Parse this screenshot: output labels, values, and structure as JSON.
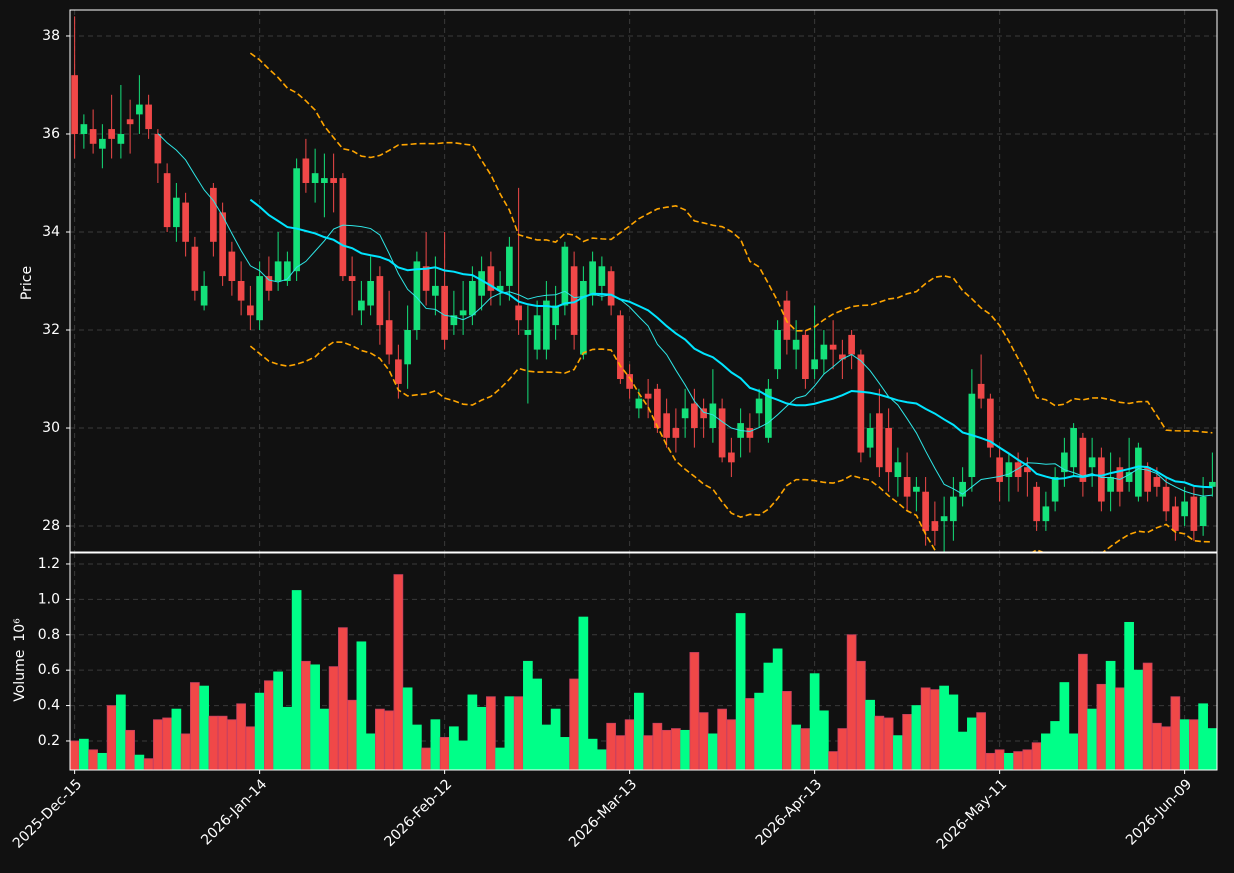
{
  "chart_data": {
    "type": "candlestick",
    "ylabel": "Price",
    "volume_label": "Volume",
    "volume_unit": "10⁶",
    "up_color": "#14e07a",
    "down_color": "#f04848",
    "volume_up_color": "#00ff88",
    "grid": true,
    "xlim": [
      -0.5,
      123.5
    ],
    "ylim": [
      27.47,
      38.53
    ],
    "yticks": [
      28,
      30,
      32,
      34,
      36,
      38
    ],
    "volume_ylim": [
      0.036,
      1.262
    ],
    "volume_yticks": [
      0.2,
      0.4,
      0.6,
      0.8,
      {
        "value": 1,
        "label": "1.0"
      },
      1.2
    ],
    "xticks": [
      0,
      20,
      40,
      60,
      80,
      100,
      120
    ],
    "moving_averages": [
      {
        "window": 10,
        "color": "#2ee6e6",
        "width": 1
      },
      {
        "window": 20,
        "color": "#00e5ff",
        "width": 2
      }
    ],
    "bollinger": {
      "window": 20,
      "num_std": 2,
      "color": "#ffa500"
    },
    "categories": [
      "2025-Dec-15",
      null,
      null,
      null,
      null,
      null,
      null,
      null,
      null,
      null,
      null,
      null,
      null,
      null,
      null,
      null,
      null,
      null,
      null,
      null,
      "2026-Jan-14",
      null,
      null,
      null,
      null,
      null,
      null,
      null,
      null,
      null,
      null,
      null,
      null,
      null,
      null,
      null,
      null,
      null,
      null,
      null,
      "2026-Feb-12",
      null,
      null,
      null,
      null,
      null,
      null,
      null,
      null,
      null,
      null,
      null,
      null,
      null,
      null,
      null,
      null,
      null,
      null,
      null,
      "2026-Mar-13",
      null,
      null,
      null,
      null,
      null,
      null,
      null,
      null,
      null,
      null,
      null,
      null,
      null,
      null,
      null,
      null,
      null,
      null,
      null,
      "2026-Apr-13",
      null,
      null,
      null,
      null,
      null,
      null,
      null,
      null,
      null,
      null,
      null,
      null,
      null,
      null,
      null,
      null,
      null,
      null,
      null,
      "2026-May-11",
      null,
      null,
      null,
      null,
      null,
      null,
      null,
      null,
      null,
      null,
      null,
      null,
      null,
      null,
      null,
      null,
      null,
      null,
      null,
      "2026-Jun-09",
      null,
      null,
      null
    ],
    "open": [
      37.2,
      36.0,
      36.1,
      35.7,
      36.1,
      35.8,
      36.3,
      36.4,
      36.6,
      36.0,
      35.2,
      34.1,
      34.6,
      33.7,
      32.5,
      34.9,
      34.4,
      33.6,
      33.0,
      32.5,
      32.2,
      33.1,
      33.0,
      33.0,
      33.2,
      35.5,
      35.0,
      35.0,
      35.1,
      35.1,
      33.1,
      32.4,
      32.5,
      33.1,
      32.2,
      31.4,
      31.3,
      32.0,
      33.3,
      32.7,
      32.9,
      32.1,
      32.3,
      32.3,
      32.7,
      33.3,
      32.8,
      32.9,
      32.5,
      31.9,
      31.6,
      31.6,
      32.1,
      32.5,
      33.3,
      31.5,
      32.7,
      32.9,
      33.2,
      32.3,
      31.1,
      30.4,
      30.7,
      30.8,
      30.3,
      30.0,
      30.2,
      30.5,
      30.4,
      30.0,
      30.4,
      29.5,
      29.8,
      30.0,
      30.3,
      29.8,
      31.2,
      32.6,
      31.6,
      31.9,
      31.2,
      31.4,
      31.7,
      31.5,
      31.9,
      31.5,
      29.6,
      30.3,
      30.0,
      29.0,
      29.0,
      28.7,
      28.7,
      28.1,
      28.1,
      28.1,
      28.6,
      29.0,
      30.9,
      30.6,
      29.4,
      29.0,
      29.3,
      29.2,
      28.8,
      28.1,
      28.5,
      29.1,
      29.2,
      29.8,
      29.2,
      29.4,
      28.7,
      29.2,
      28.9,
      28.6,
      29.2,
      29.0,
      28.8,
      28.4,
      28.2,
      28.6,
      28.0,
      28.8
    ],
    "high": [
      38.4,
      36.4,
      36.5,
      36.2,
      36.8,
      37.0,
      36.7,
      37.2,
      36.8,
      36.1,
      35.4,
      35.0,
      34.8,
      33.9,
      33.2,
      35.0,
      34.6,
      33.8,
      33.4,
      32.9,
      33.4,
      33.5,
      34.0,
      33.6,
      35.5,
      35.9,
      35.7,
      35.6,
      35.6,
      35.2,
      33.5,
      33.0,
      33.5,
      33.3,
      32.8,
      31.7,
      32.5,
      33.6,
      34.0,
      33.5,
      34.0,
      32.8,
      33.0,
      33.3,
      33.5,
      33.6,
      33.2,
      33.9,
      34.9,
      32.5,
      32.6,
      33.0,
      32.9,
      33.8,
      33.6,
      33.3,
      33.6,
      33.5,
      33.3,
      32.4,
      31.3,
      30.8,
      31.0,
      30.9,
      30.6,
      30.4,
      30.8,
      30.8,
      30.6,
      31.2,
      30.6,
      29.8,
      30.4,
      30.3,
      30.8,
      31.0,
      32.2,
      32.8,
      32.2,
      32.0,
      32.5,
      32.0,
      32.2,
      31.8,
      32.0,
      31.6,
      30.3,
      30.8,
      30.4,
      29.6,
      29.5,
      29.0,
      29.0,
      28.5,
      28.6,
      29.0,
      29.2,
      31.2,
      31.5,
      30.7,
      29.6,
      29.5,
      29.5,
      29.4,
      28.9,
      28.7,
      29.2,
      29.8,
      30.1,
      29.9,
      29.8,
      29.6,
      29.5,
      29.4,
      29.8,
      29.7,
      29.3,
      29.2,
      29.0,
      28.6,
      28.8,
      28.8,
      29.0,
      29.5
    ],
    "low": [
      35.5,
      35.7,
      35.6,
      35.3,
      35.5,
      35.5,
      35.6,
      36.0,
      35.9,
      35.0,
      34.0,
      33.8,
      33.5,
      32.6,
      32.4,
      33.5,
      32.9,
      32.7,
      32.3,
      32.0,
      32.0,
      32.6,
      32.8,
      32.9,
      33.0,
      34.8,
      34.6,
      34.3,
      34.4,
      33.0,
      32.3,
      32.1,
      32.3,
      31.7,
      31.3,
      30.6,
      30.8,
      31.8,
      32.5,
      32.3,
      31.6,
      31.9,
      31.9,
      32.1,
      32.4,
      32.5,
      32.5,
      32.6,
      31.9,
      30.5,
      31.4,
      31.4,
      31.8,
      32.3,
      31.6,
      31.4,
      32.5,
      32.6,
      32.3,
      30.9,
      30.6,
      30.2,
      30.2,
      29.9,
      29.6,
      29.5,
      29.8,
      29.6,
      29.8,
      29.7,
      29.3,
      29.0,
      29.4,
      29.5,
      30.0,
      29.7,
      31.0,
      31.5,
      31.2,
      30.8,
      31.0,
      31.1,
      31.2,
      31.0,
      31.2,
      29.3,
      29.4,
      29.0,
      28.7,
      28.6,
      28.3,
      28.3,
      27.6,
      27.6,
      27.3,
      27.7,
      28.4,
      28.7,
      30.4,
      29.4,
      28.5,
      28.5,
      28.7,
      28.6,
      27.9,
      27.9,
      28.3,
      28.8,
      29.0,
      28.6,
      28.8,
      28.3,
      28.3,
      28.4,
      28.7,
      28.5,
      28.5,
      28.6,
      28.1,
      27.7,
      28.0,
      27.7,
      27.8,
      28.6
    ],
    "close": [
      36.0,
      36.2,
      35.8,
      35.9,
      35.9,
      36.0,
      36.2,
      36.6,
      36.1,
      35.4,
      34.1,
      34.7,
      33.8,
      32.8,
      32.9,
      33.8,
      33.1,
      33.0,
      32.6,
      32.3,
      33.1,
      32.8,
      33.4,
      33.4,
      35.3,
      35.0,
      35.2,
      35.1,
      35.0,
      33.1,
      33.0,
      32.6,
      33.0,
      32.1,
      31.5,
      30.9,
      32.0,
      33.4,
      32.8,
      32.9,
      31.8,
      32.3,
      32.4,
      33.0,
      33.2,
      32.8,
      32.9,
      33.7,
      32.2,
      32.0,
      32.3,
      32.6,
      32.5,
      33.7,
      31.9,
      33.0,
      33.4,
      33.3,
      32.5,
      31.0,
      30.8,
      30.6,
      30.6,
      30.0,
      29.8,
      29.8,
      30.4,
      30.0,
      30.2,
      30.5,
      29.4,
      29.3,
      30.1,
      29.8,
      30.6,
      30.8,
      32.0,
      31.8,
      31.8,
      31.0,
      31.4,
      31.7,
      31.6,
      31.4,
      31.5,
      29.5,
      30.0,
      29.2,
      29.1,
      29.3,
      28.6,
      28.8,
      27.9,
      27.9,
      28.2,
      28.6,
      28.9,
      30.7,
      30.6,
      29.6,
      28.9,
      29.3,
      29.0,
      29.1,
      28.1,
      28.4,
      29.0,
      29.5,
      30.0,
      28.9,
      29.4,
      28.5,
      29.0,
      28.7,
      29.1,
      29.6,
      28.7,
      28.8,
      28.3,
      27.9,
      28.5,
      27.9,
      28.6,
      28.9
    ],
    "volume": [
      0.2,
      0.21,
      0.15,
      0.13,
      0.4,
      0.46,
      0.26,
      0.12,
      0.1,
      0.32,
      0.33,
      0.38,
      0.24,
      0.53,
      0.51,
      0.34,
      0.34,
      0.32,
      0.41,
      0.28,
      0.47,
      0.54,
      0.59,
      0.39,
      1.05,
      0.65,
      0.63,
      0.38,
      0.62,
      0.84,
      0.43,
      0.76,
      0.24,
      0.38,
      0.37,
      1.14,
      0.5,
      0.29,
      0.16,
      0.32,
      0.22,
      0.28,
      0.2,
      0.46,
      0.39,
      0.45,
      0.16,
      0.45,
      0.45,
      0.65,
      0.55,
      0.29,
      0.38,
      0.22,
      0.55,
      0.9,
      0.21,
      0.15,
      0.3,
      0.23,
      0.32,
      0.47,
      0.23,
      0.3,
      0.26,
      0.27,
      0.26,
      0.7,
      0.36,
      0.24,
      0.38,
      0.32,
      0.92,
      0.44,
      0.47,
      0.64,
      0.72,
      0.48,
      0.29,
      0.27,
      0.58,
      0.37,
      0.14,
      0.27,
      0.8,
      0.65,
      0.43,
      0.34,
      0.33,
      0.23,
      0.35,
      0.4,
      0.5,
      0.49,
      0.51,
      0.46,
      0.25,
      0.33,
      0.36,
      0.13,
      0.15,
      0.13,
      0.14,
      0.15,
      0.19,
      0.24,
      0.31,
      0.53,
      0.24,
      0.69,
      0.38,
      0.52,
      0.65,
      0.5,
      0.87,
      0.6,
      0.64,
      0.3,
      0.28,
      0.45,
      0.32,
      0.32,
      0.41,
      0.27
    ]
  }
}
